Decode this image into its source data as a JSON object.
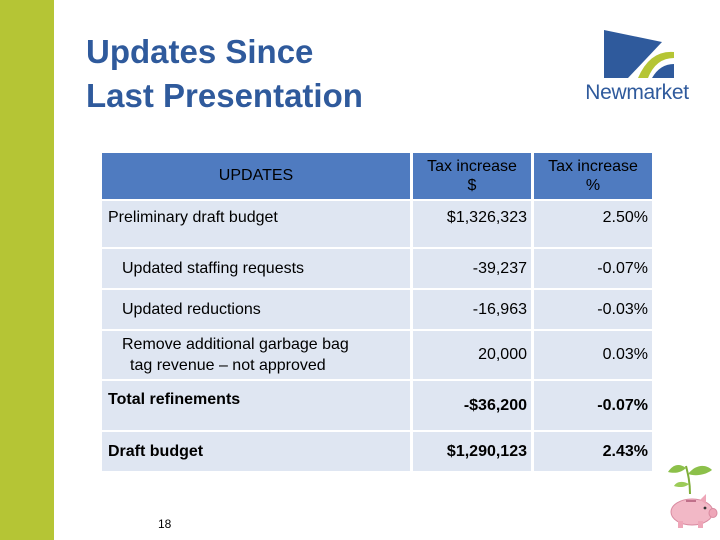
{
  "slide": {
    "title_line1": "Updates Since",
    "title_line2": "Last Presentation",
    "page_number": "18"
  },
  "logo": {
    "text": "Newmarket",
    "icon": "newmarket-logo-icon"
  },
  "table": {
    "headers": {
      "updates": "UPDATES",
      "tax_dollar_line1": "Tax increase",
      "tax_dollar_line2": "$",
      "tax_percent_line1": "Tax increase",
      "tax_percent_line2": "%"
    },
    "rows": [
      {
        "label": "Preliminary draft budget",
        "dollar": "$1,326,323",
        "percent": "2.50%"
      },
      {
        "label": "Updated staffing requests",
        "dollar": "-39,237",
        "percent": "-0.07%"
      },
      {
        "label": "Updated reductions",
        "dollar": "-16,963",
        "percent": "-0.03%"
      },
      {
        "label_line1": "Remove additional garbage bag",
        "label_line2": "tag revenue – not approved",
        "dollar": "20,000",
        "percent": "0.03%"
      },
      {
        "label": "Total refinements",
        "dollar": "-$36,200",
        "percent": "-0.07%"
      },
      {
        "label": "Draft budget",
        "dollar": "$1,290,123",
        "percent": "2.43%"
      }
    ]
  },
  "decoration": {
    "icon": "piggy-bank-sprout-icon"
  },
  "colors": {
    "accent_green": "#b5c535",
    "header_blue": "#4f7bc0",
    "row_fill": "#dfe6f2",
    "title_blue": "#2f5a9c"
  }
}
